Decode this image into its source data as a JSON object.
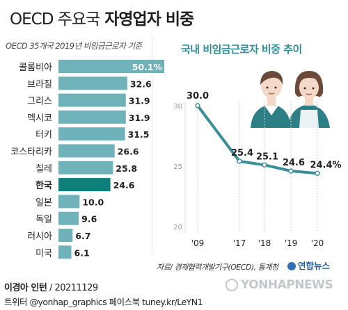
{
  "title": {
    "light": "OECD 주요국",
    "bold": "자영업자 비중"
  },
  "chart_data": [
    {
      "type": "bar",
      "orientation": "horizontal",
      "subtitle": "OECD 35개국 2019년 비임금근로자 기준",
      "categories": [
        "콜롬비아",
        "브라질",
        "그리스",
        "멕시코",
        "터키",
        "코스타리카",
        "칠레",
        "한국",
        "일본",
        "독일",
        "러시아",
        "미국"
      ],
      "values": [
        50.1,
        32.6,
        31.9,
        31.9,
        31.5,
        26.6,
        25.8,
        24.6,
        10.0,
        9.6,
        6.7,
        6.1
      ],
      "value_labels": [
        "50.1%",
        "32.6",
        "31.9",
        "31.9",
        "31.5",
        "26.6",
        "25.8",
        "24.6",
        "10.0",
        "9.6",
        "6.7",
        "6.1"
      ],
      "highlight": "한국",
      "colors": {
        "bar": "#6fb2b9",
        "highlight": "#0f7f7c"
      }
    },
    {
      "type": "line",
      "title": "국내 비임금근로자 비중 추이",
      "x": [
        "'09",
        "'17",
        "'18",
        "'19",
        "'20"
      ],
      "x_values": [
        2009,
        2017,
        2018,
        2019,
        2020
      ],
      "y": [
        30.0,
        25.4,
        25.1,
        24.6,
        24.4
      ],
      "value_labels": [
        "30.0",
        "25.4",
        "25.1",
        "24.6",
        "24.4%"
      ],
      "ylim": [
        20,
        30
      ],
      "yticks": [
        "20",
        "25",
        "30"
      ],
      "grid": false,
      "colors": {
        "line": "#3a8f99"
      }
    }
  ],
  "source": "자료/ 경제협력개발기구(OECD), 통계청",
  "logo": "연합뉴스",
  "watermark": "YONHAPNEWS",
  "credit": {
    "author": "이경아 인턴",
    "date": "/ 20211129"
  },
  "social": "트위터 @yonhap_graphics  페이스북 tuney.kr/LeYN1"
}
